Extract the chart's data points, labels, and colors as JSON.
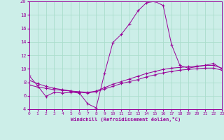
{
  "xlabel": "Windchill (Refroidissement éolien,°C)",
  "background_color": "#cceee8",
  "grid_color": "#aaddcc",
  "line_color": "#990099",
  "xlim": [
    0,
    23
  ],
  "ylim": [
    4,
    20
  ],
  "yticks": [
    4,
    6,
    8,
    10,
    12,
    14,
    16,
    18,
    20
  ],
  "xticks": [
    0,
    1,
    2,
    3,
    4,
    5,
    6,
    7,
    8,
    9,
    10,
    11,
    12,
    13,
    14,
    15,
    16,
    17,
    18,
    19,
    20,
    21,
    22,
    23
  ],
  "series1_x": [
    0,
    1,
    2,
    3,
    4,
    5,
    6,
    7,
    8,
    9,
    10,
    11,
    12,
    13,
    14,
    15,
    16,
    17,
    18,
    19,
    20,
    21,
    22,
    23
  ],
  "series1_y": [
    9.0,
    7.5,
    5.9,
    6.5,
    6.4,
    6.5,
    6.4,
    4.8,
    4.2,
    9.3,
    13.9,
    15.1,
    16.7,
    18.6,
    19.8,
    20.0,
    19.4,
    13.6,
    10.5,
    10.1,
    10.3,
    10.5,
    10.8,
    10.0
  ],
  "series2_x": [
    0,
    1,
    2,
    3,
    4,
    5,
    6,
    7,
    8,
    9,
    10,
    11,
    12,
    13,
    14,
    15,
    16,
    17,
    18,
    19,
    20,
    21,
    22,
    23
  ],
  "series2_y": [
    8.3,
    7.8,
    7.4,
    7.1,
    6.9,
    6.7,
    6.6,
    6.5,
    6.7,
    7.2,
    7.7,
    8.1,
    8.5,
    8.9,
    9.3,
    9.6,
    9.9,
    10.1,
    10.2,
    10.3,
    10.4,
    10.5,
    10.5,
    10.1
  ],
  "series3_x": [
    0,
    1,
    2,
    3,
    4,
    5,
    6,
    7,
    8,
    9,
    10,
    11,
    12,
    13,
    14,
    15,
    16,
    17,
    18,
    19,
    20,
    21,
    22,
    23
  ],
  "series3_y": [
    7.6,
    7.3,
    7.1,
    6.9,
    6.8,
    6.7,
    6.5,
    6.4,
    6.6,
    7.0,
    7.4,
    7.8,
    8.1,
    8.4,
    8.8,
    9.1,
    9.4,
    9.6,
    9.8,
    9.9,
    10.0,
    10.1,
    10.1,
    9.8
  ]
}
